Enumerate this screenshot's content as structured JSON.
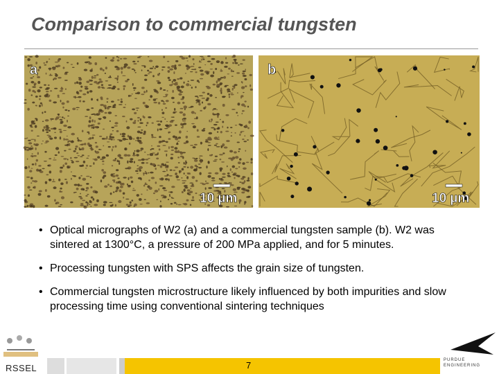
{
  "header": {
    "title": "Comparison to commercial tungsten"
  },
  "images": [
    {
      "label": "a",
      "scale": "10 µm"
    },
    {
      "label": "b",
      "scale": "10 µm"
    }
  ],
  "bullets": [
    "Optical micrographs of W2 (a) and a commercial tungsten sample (b). W2 was sintered at 1300°C, a pressure of 200 MPa applied, and for 5 minutes.",
    "Processing tungsten with SPS affects the grain size of tungsten.",
    "Commercial tungsten microstructure likely influenced by both impurities and slow processing time using conventional sintering techniques"
  ],
  "footer": {
    "page": "7",
    "logo_left": "RSSEL",
    "logo_right": [
      "PURDUE",
      "ENGINEERING"
    ]
  }
}
